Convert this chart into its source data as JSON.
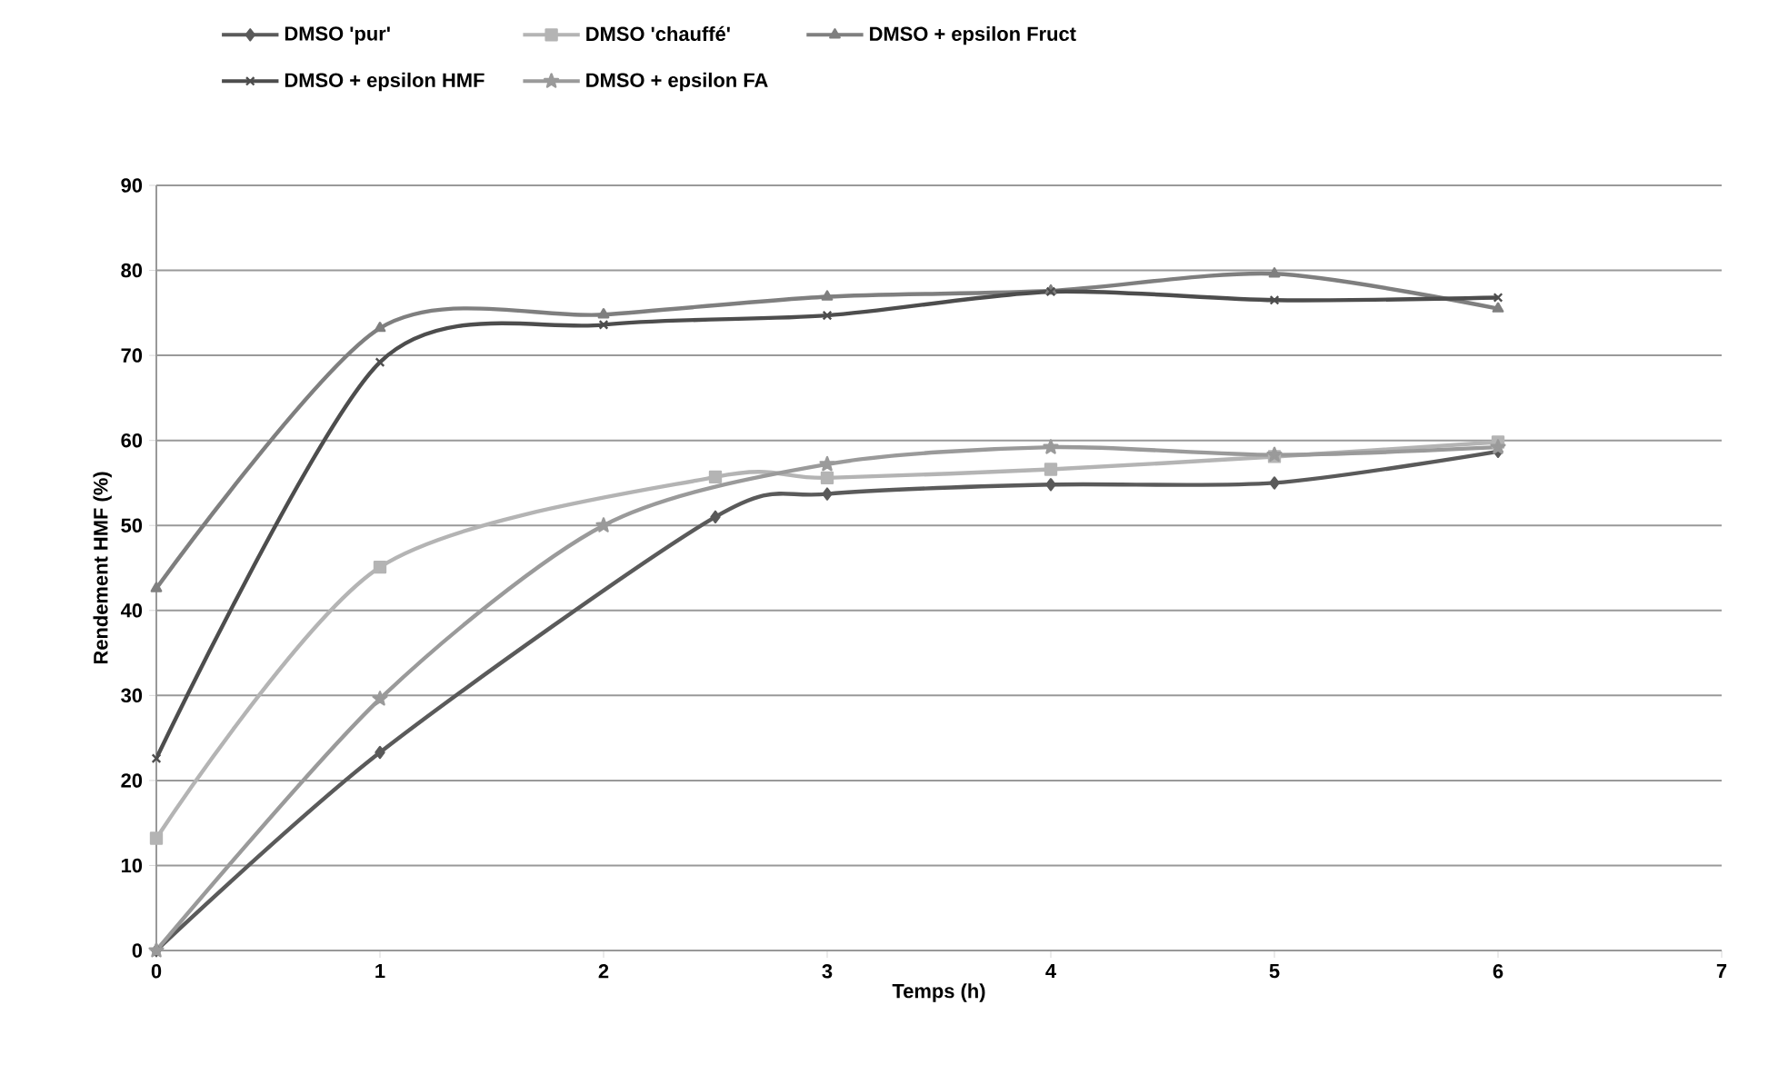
{
  "chart_data": {
    "type": "line",
    "xlabel": "Temps (h)",
    "ylabel": "Rendement HMF (%)",
    "xlim": [
      0,
      7
    ],
    "xticks": [
      0,
      1,
      2,
      3,
      4,
      5,
      6,
      7
    ],
    "ylim": [
      0,
      90
    ],
    "yticks": [
      0,
      10,
      20,
      30,
      40,
      50,
      60,
      70,
      80,
      90
    ],
    "grid": "y",
    "legend": "top",
    "line_style": "solid",
    "series": [
      {
        "name": "DMSO 'pur'",
        "color": "#5a5a5a",
        "marker": "diamond",
        "x": [
          0,
          1,
          2.5,
          3,
          4,
          5,
          6
        ],
        "values": [
          0,
          23.3,
          51,
          53.7,
          54.8,
          55,
          58.7
        ]
      },
      {
        "name": "DMSO 'chauffé'",
        "color": "#b4b4b4",
        "marker": "square",
        "x": [
          0,
          1,
          2.5,
          3,
          4,
          5,
          6
        ],
        "values": [
          13.2,
          45.1,
          55.7,
          55.6,
          56.6,
          58.1,
          59.8
        ]
      },
      {
        "name": "DMSO + epsilon Fruct",
        "color": "#7f7f7f",
        "marker": "triangle",
        "x": [
          0,
          1,
          2,
          3,
          4,
          5,
          6
        ],
        "values": [
          42.6,
          73.2,
          74.8,
          76.9,
          77.6,
          79.6,
          75.5
        ]
      },
      {
        "name": "DMSO + epsilon HMF",
        "color": "#4d4d4d",
        "marker": "cross",
        "x": [
          0,
          1,
          2,
          3,
          4,
          5,
          6
        ],
        "values": [
          22.6,
          69.2,
          73.6,
          74.7,
          77.5,
          76.5,
          76.8
        ]
      },
      {
        "name": "DMSO + epsilon FA",
        "color": "#9a9a9a",
        "marker": "star",
        "x": [
          0,
          1,
          2,
          3,
          4,
          5,
          6
        ],
        "values": [
          0,
          29.6,
          50,
          57.2,
          59.2,
          58.3,
          59.2
        ]
      }
    ]
  }
}
